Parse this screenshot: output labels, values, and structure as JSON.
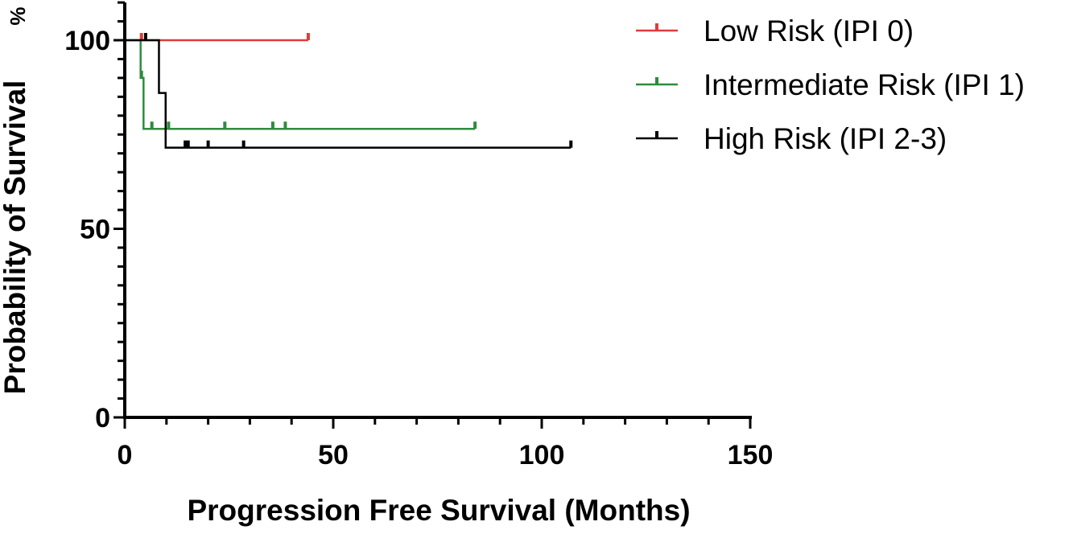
{
  "chart_data": {
    "type": "line",
    "subtype": "kaplan-meier",
    "title": "",
    "xlabel": "Progression Free Survival (Months)",
    "ylabel": "Probability of Survival",
    "ylabel_unit": "%",
    "xlim": [
      0,
      150
    ],
    "ylim": [
      0,
      110
    ],
    "xticks": [
      0,
      50,
      100,
      150
    ],
    "yticks": [
      0,
      50,
      100
    ],
    "grid": false,
    "legend_position": "top-right",
    "series": [
      {
        "name": "Low Risk (IPI 0)",
        "color": "#e03a3a",
        "steps": [
          [
            0,
            100
          ],
          [
            44,
            100
          ]
        ],
        "censored": [
          [
            4,
            100
          ],
          [
            44,
            100
          ]
        ]
      },
      {
        "name": "Intermediate Risk (IPI 1)",
        "color": "#2e8b3e",
        "steps": [
          [
            0,
            100
          ],
          [
            3.8,
            100
          ],
          [
            3.8,
            90
          ],
          [
            4.5,
            90
          ],
          [
            4.5,
            76.5
          ],
          [
            84,
            76.5
          ]
        ],
        "censored": [
          [
            4,
            90
          ],
          [
            6.5,
            76.5
          ],
          [
            10.5,
            76.5
          ],
          [
            24,
            76.5
          ],
          [
            35.5,
            76.5
          ],
          [
            38.5,
            76.5
          ],
          [
            84,
            76.5
          ]
        ]
      },
      {
        "name": "High Risk (IPI 2-3)",
        "color": "#000000",
        "steps": [
          [
            0,
            100
          ],
          [
            8.2,
            100
          ],
          [
            8.2,
            86
          ],
          [
            9.8,
            86
          ],
          [
            9.8,
            71.5
          ],
          [
            107,
            71.5
          ]
        ],
        "censored": [
          [
            5,
            100
          ],
          [
            14.5,
            71.5
          ],
          [
            15.2,
            71.5
          ],
          [
            20,
            71.5
          ],
          [
            28.5,
            71.5
          ],
          [
            107,
            71.5
          ]
        ]
      }
    ]
  }
}
